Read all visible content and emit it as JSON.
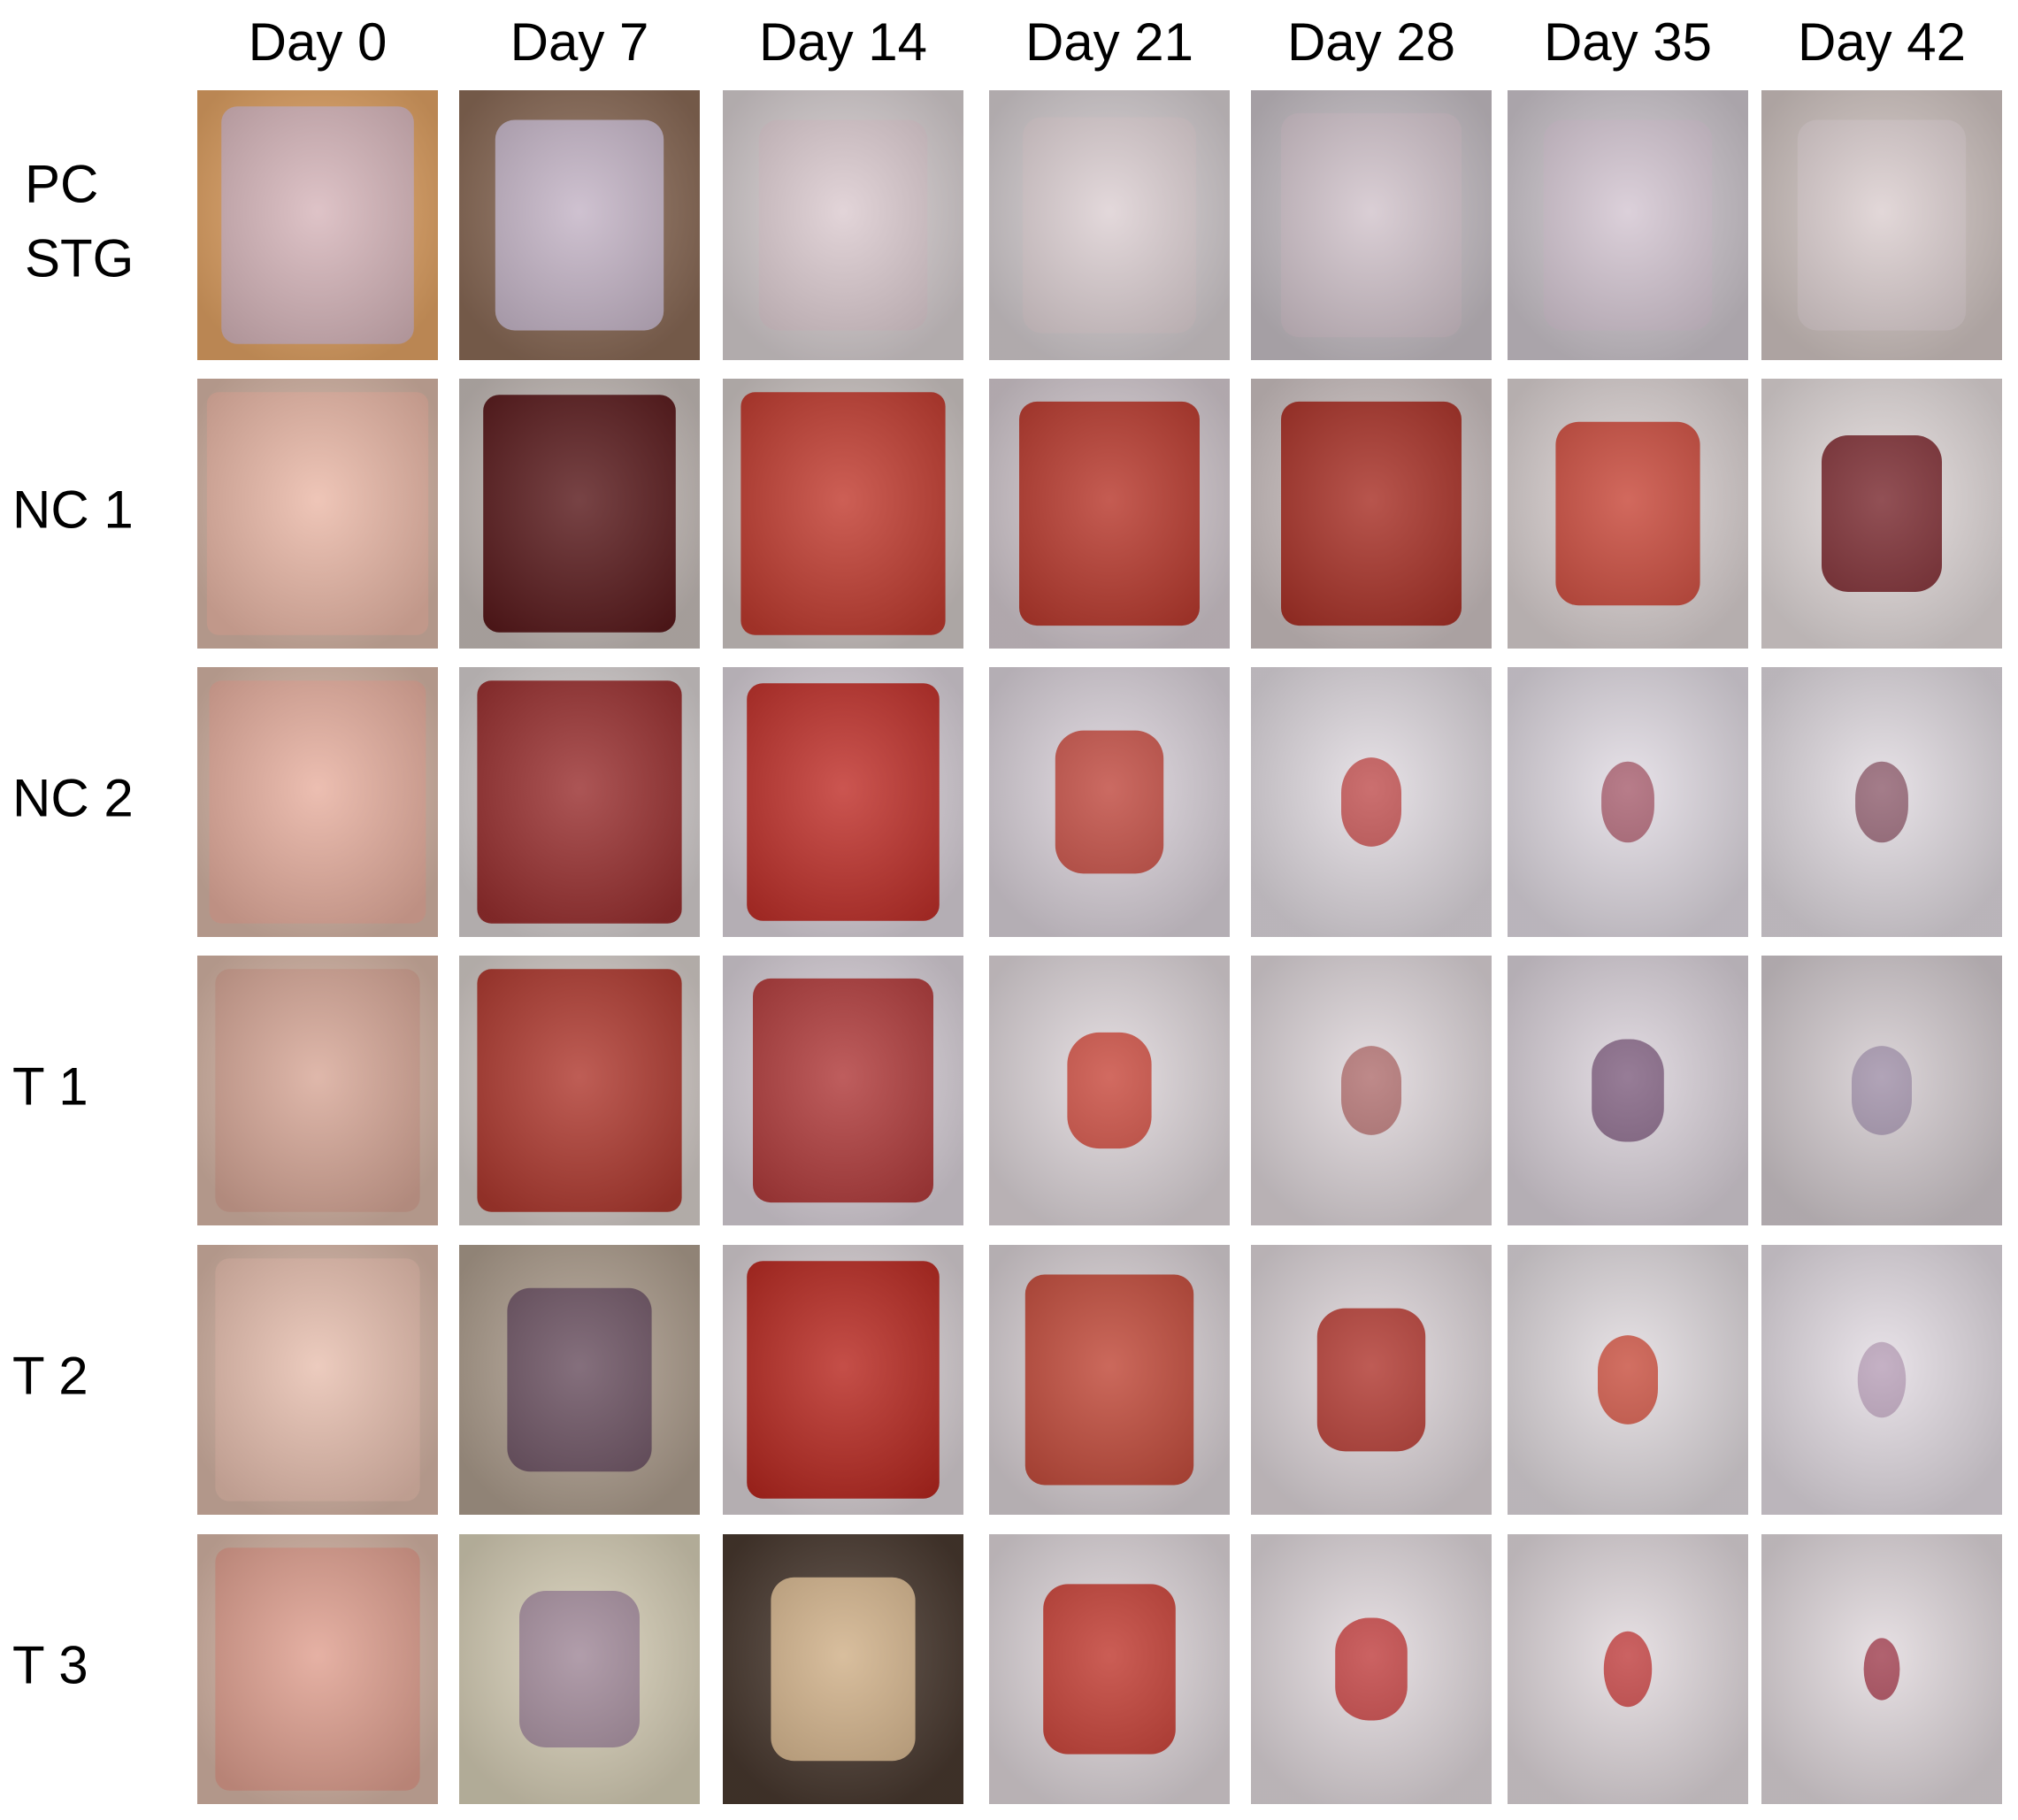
{
  "columns": [
    "Day 0",
    "Day 7",
    "Day 14",
    "Day 21",
    "Day 28",
    "Day 35",
    "Day 42"
  ],
  "rows": [
    [
      "PC",
      "STG"
    ],
    [
      "NC 1"
    ],
    [
      "NC 2"
    ],
    [
      "T 1"
    ],
    [
      "T 2"
    ],
    [
      "T 3"
    ]
  ]
}
